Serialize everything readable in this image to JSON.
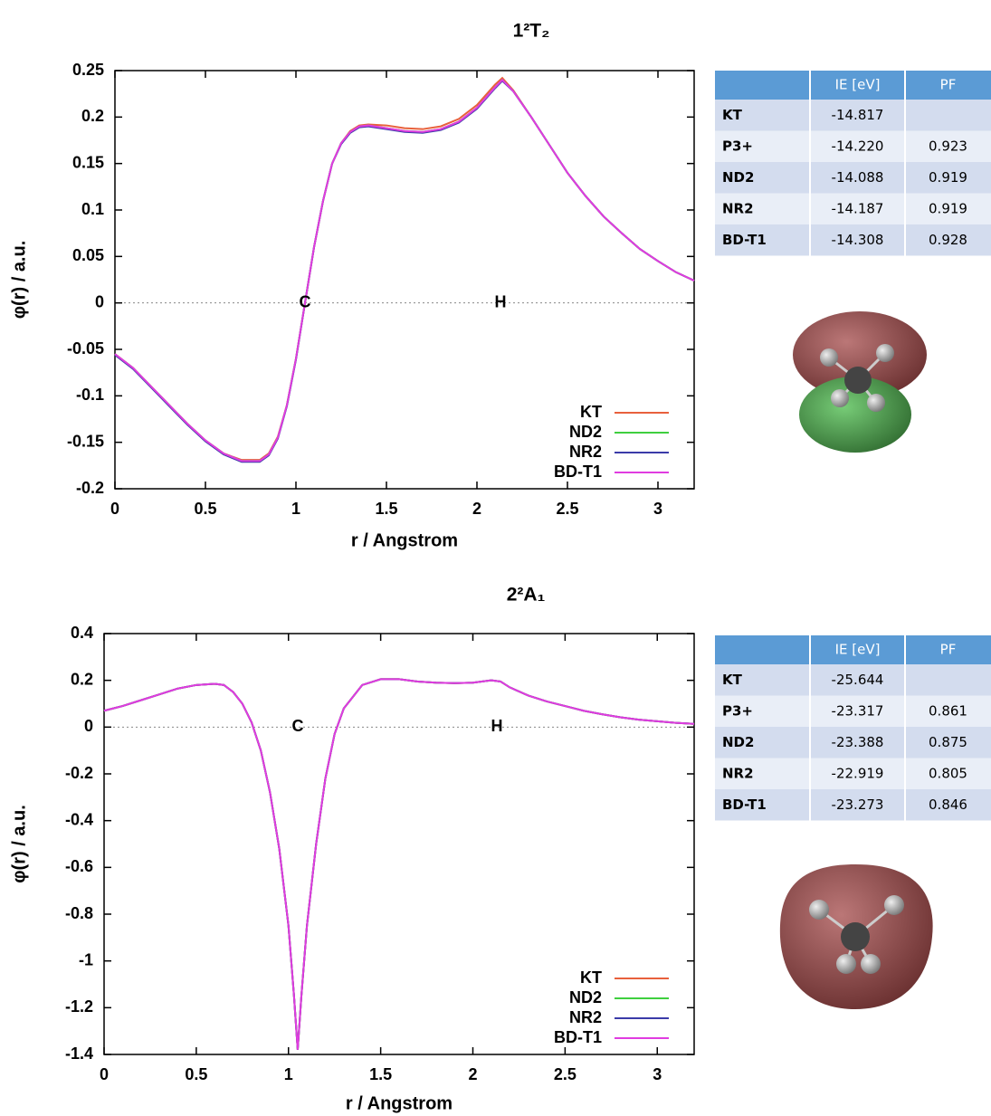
{
  "chart_data": [
    {
      "type": "line",
      "title": "1²T₂",
      "xlabel": "r / Angstrom",
      "ylabel": "φ(r) / a.u.",
      "xlim": [
        0,
        3.2
      ],
      "ylim": [
        -0.2,
        0.25
      ],
      "xticks": [
        0,
        0.5,
        1,
        1.5,
        2,
        2.5,
        3
      ],
      "yticks": [
        -0.2,
        -0.15,
        -0.1,
        -0.05,
        0,
        0.05,
        0.1,
        0.15,
        0.2,
        0.25
      ],
      "legend": "lower right",
      "annotations": [
        {
          "text": "C",
          "x": 1.05
        },
        {
          "text": "H",
          "x": 2.13
        }
      ],
      "x": [
        0,
        0.1,
        0.2,
        0.3,
        0.4,
        0.5,
        0.6,
        0.7,
        0.8,
        0.85,
        0.9,
        0.95,
        1.0,
        1.05,
        1.1,
        1.15,
        1.2,
        1.25,
        1.3,
        1.35,
        1.4,
        1.5,
        1.6,
        1.7,
        1.8,
        1.9,
        2.0,
        2.1,
        2.14,
        2.2,
        2.3,
        2.4,
        2.5,
        2.6,
        2.7,
        2.8,
        2.9,
        3.0,
        3.1,
        3.2
      ],
      "series": [
        {
          "name": "KT",
          "color": "#e8603c",
          "values": [
            -0.055,
            -0.07,
            -0.09,
            -0.11,
            -0.13,
            -0.148,
            -0.162,
            -0.169,
            -0.169,
            -0.162,
            -0.144,
            -0.11,
            -0.06,
            0.0,
            0.06,
            0.11,
            0.15,
            0.172,
            0.185,
            0.191,
            0.192,
            0.191,
            0.188,
            0.187,
            0.19,
            0.198,
            0.213,
            0.235,
            0.242,
            0.229,
            0.2,
            0.17,
            0.14,
            0.115,
            0.093,
            0.075,
            0.058,
            0.045,
            0.033,
            0.024
          ]
        },
        {
          "name": "ND2",
          "color": "#3fcf3f",
          "values": [
            -0.055,
            -0.07,
            -0.09,
            -0.11,
            -0.13,
            -0.148,
            -0.162,
            -0.17,
            -0.17,
            -0.163,
            -0.145,
            -0.11,
            -0.06,
            0.0,
            0.06,
            0.11,
            0.15,
            0.172,
            0.184,
            0.19,
            0.191,
            0.188,
            0.185,
            0.184,
            0.187,
            0.195,
            0.21,
            0.232,
            0.24,
            0.228,
            0.2,
            0.17,
            0.14,
            0.115,
            0.093,
            0.075,
            0.058,
            0.045,
            0.033,
            0.024
          ]
        },
        {
          "name": "NR2",
          "color": "#3b3ba8",
          "values": [
            -0.056,
            -0.071,
            -0.091,
            -0.111,
            -0.131,
            -0.149,
            -0.163,
            -0.171,
            -0.171,
            -0.164,
            -0.146,
            -0.111,
            -0.061,
            0.0,
            0.06,
            0.11,
            0.15,
            0.171,
            0.183,
            0.189,
            0.19,
            0.187,
            0.184,
            0.183,
            0.186,
            0.194,
            0.209,
            0.231,
            0.239,
            0.228,
            0.2,
            0.17,
            0.14,
            0.115,
            0.093,
            0.075,
            0.058,
            0.045,
            0.033,
            0.024
          ]
        },
        {
          "name": "BD-T1",
          "color": "#e03ce0",
          "values": [
            -0.055,
            -0.07,
            -0.09,
            -0.11,
            -0.13,
            -0.148,
            -0.162,
            -0.17,
            -0.17,
            -0.163,
            -0.145,
            -0.11,
            -0.06,
            0.0,
            0.06,
            0.11,
            0.15,
            0.172,
            0.184,
            0.19,
            0.191,
            0.188,
            0.185,
            0.184,
            0.187,
            0.195,
            0.21,
            0.232,
            0.24,
            0.228,
            0.2,
            0.17,
            0.14,
            0.115,
            0.093,
            0.075,
            0.058,
            0.045,
            0.033,
            0.024
          ]
        }
      ]
    },
    {
      "type": "line",
      "title": "2²A₁",
      "xlabel": "r / Angstrom",
      "ylabel": "φ(r) / a.u.",
      "xlim": [
        0,
        3.2
      ],
      "ylim": [
        -1.4,
        0.4
      ],
      "xticks": [
        0,
        0.5,
        1,
        1.5,
        2,
        2.5,
        3
      ],
      "yticks": [
        -1.4,
        -1.2,
        -1,
        -0.8,
        -0.6,
        -0.4,
        -0.2,
        0,
        0.2,
        0.4
      ],
      "legend": "lower right",
      "annotations": [
        {
          "text": "C",
          "x": 1.05
        },
        {
          "text": "H",
          "x": 2.13
        }
      ],
      "x": [
        0,
        0.1,
        0.2,
        0.3,
        0.4,
        0.5,
        0.6,
        0.65,
        0.7,
        0.75,
        0.8,
        0.85,
        0.9,
        0.95,
        1.0,
        1.03,
        1.05,
        1.07,
        1.1,
        1.15,
        1.2,
        1.25,
        1.3,
        1.4,
        1.5,
        1.6,
        1.7,
        1.8,
        1.9,
        2.0,
        2.1,
        2.15,
        2.2,
        2.3,
        2.4,
        2.5,
        2.6,
        2.7,
        2.8,
        2.9,
        3.0,
        3.1,
        3.2
      ],
      "series": [
        {
          "name": "KT",
          "color": "#e8603c",
          "values": [
            0.07,
            0.09,
            0.115,
            0.14,
            0.165,
            0.18,
            0.185,
            0.18,
            0.15,
            0.1,
            0.02,
            -0.1,
            -0.28,
            -0.52,
            -0.85,
            -1.15,
            -1.38,
            -1.15,
            -0.85,
            -0.5,
            -0.22,
            -0.03,
            0.08,
            0.18,
            0.205,
            0.205,
            0.195,
            0.19,
            0.188,
            0.19,
            0.2,
            0.195,
            0.17,
            0.135,
            0.11,
            0.09,
            0.07,
            0.055,
            0.042,
            0.032,
            0.025,
            0.018,
            0.014
          ]
        },
        {
          "name": "ND2",
          "color": "#3fcf3f",
          "values": [
            0.07,
            0.09,
            0.115,
            0.14,
            0.165,
            0.18,
            0.185,
            0.18,
            0.15,
            0.1,
            0.02,
            -0.1,
            -0.28,
            -0.52,
            -0.85,
            -1.15,
            -1.38,
            -1.15,
            -0.85,
            -0.5,
            -0.22,
            -0.03,
            0.08,
            0.18,
            0.205,
            0.205,
            0.195,
            0.19,
            0.188,
            0.19,
            0.2,
            0.195,
            0.17,
            0.135,
            0.11,
            0.09,
            0.07,
            0.055,
            0.042,
            0.032,
            0.025,
            0.018,
            0.014
          ]
        },
        {
          "name": "NR2",
          "color": "#3b3ba8",
          "values": [
            0.07,
            0.09,
            0.115,
            0.14,
            0.165,
            0.18,
            0.185,
            0.18,
            0.15,
            0.1,
            0.02,
            -0.1,
            -0.28,
            -0.52,
            -0.85,
            -1.15,
            -1.38,
            -1.15,
            -0.85,
            -0.5,
            -0.22,
            -0.03,
            0.08,
            0.18,
            0.205,
            0.205,
            0.195,
            0.19,
            0.188,
            0.19,
            0.2,
            0.195,
            0.17,
            0.135,
            0.11,
            0.09,
            0.07,
            0.055,
            0.042,
            0.032,
            0.025,
            0.018,
            0.014
          ]
        },
        {
          "name": "BD-T1",
          "color": "#e03ce0",
          "values": [
            0.07,
            0.09,
            0.115,
            0.14,
            0.165,
            0.18,
            0.185,
            0.18,
            0.15,
            0.1,
            0.02,
            -0.1,
            -0.28,
            -0.52,
            -0.85,
            -1.15,
            -1.38,
            -1.15,
            -0.85,
            -0.5,
            -0.22,
            -0.03,
            0.08,
            0.18,
            0.205,
            0.205,
            0.195,
            0.19,
            0.188,
            0.19,
            0.2,
            0.195,
            0.17,
            0.135,
            0.11,
            0.09,
            0.07,
            0.055,
            0.042,
            0.032,
            0.025,
            0.018,
            0.014
          ]
        }
      ]
    }
  ],
  "tables": [
    {
      "columns": [
        "IE [eV]",
        "PF"
      ],
      "rows": [
        [
          "KT",
          "-14.817"
        ],
        [
          "P3+",
          "-14.220",
          "0.923"
        ],
        [
          "ND2",
          "-14.088",
          "0.919"
        ],
        [
          "NR2",
          "-14.187",
          "0.919"
        ],
        [
          "BD-T1",
          "-14.308",
          "0.928"
        ]
      ]
    },
    {
      "columns": [
        "IE [eV]",
        "PF"
      ],
      "rows": [
        [
          "KT",
          "-25.644"
        ],
        [
          "P3+",
          "-23.317",
          "0.861"
        ],
        [
          "ND2",
          "-23.388",
          "0.875"
        ],
        [
          "NR2",
          "-22.919",
          "0.805"
        ],
        [
          "BD-T1",
          "-23.273",
          "0.846"
        ]
      ]
    }
  ]
}
